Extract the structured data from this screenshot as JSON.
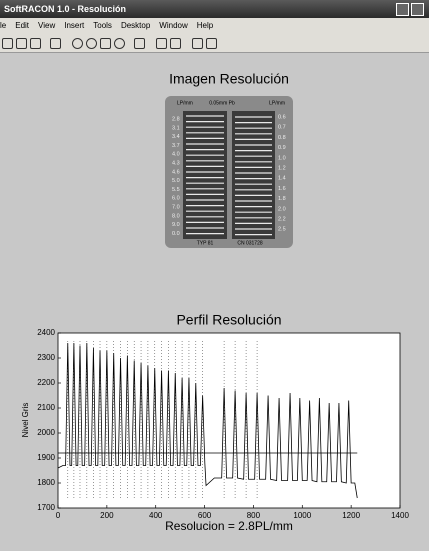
{
  "window": {
    "title": "SoftRACON 1.0 - Resolución",
    "menu": [
      "le",
      "Edit",
      "View",
      "Insert",
      "Tools",
      "Desktop",
      "Window",
      "Help"
    ]
  },
  "image_panel": {
    "title": "Imagen Resolución",
    "header": [
      "LP/mm",
      "0.05mm Pb",
      "LP/mm"
    ],
    "left_labels": [
      "2.8",
      "3.1",
      "3.4",
      "3.7",
      "4.0",
      "4.3",
      "4.6",
      "5.0",
      "5.5",
      "6.0",
      "7.0",
      "8.0",
      "9.0",
      "0.0"
    ],
    "right_labels": [
      "0.6",
      "0.7",
      "0.8",
      "0.9",
      "1.0",
      "1.2",
      "1.4",
      "1.6",
      "1.8",
      "2.0",
      "2.2",
      "2.5"
    ],
    "footer": [
      "TYP 81",
      "CN 031728"
    ]
  },
  "chart_data": {
    "type": "line",
    "title": "Perfil Resolución",
    "xlabel": "Resolucion = 2.8PL/mm",
    "ylabel": "Nivel Gris",
    "xlim": [
      0,
      1400
    ],
    "xticks": [
      0,
      200,
      400,
      600,
      800,
      1000,
      1200,
      1400
    ],
    "ylim": [
      1700,
      2400
    ],
    "yticks": [
      1700,
      1800,
      1900,
      2000,
      2100,
      2200,
      2300,
      2400
    ],
    "series": [
      {
        "color": "#000000",
        "x": [
          0,
          20,
          31,
          40,
          49,
          56,
          65,
          74,
          81,
          90,
          99,
          109,
          118,
          127,
          136,
          145,
          154,
          163,
          172,
          181,
          191,
          200,
          209,
          219,
          228,
          237,
          247,
          256,
          265,
          275,
          284,
          293,
          303,
          312,
          321,
          331,
          340,
          349,
          359,
          368,
          377,
          387,
          396,
          405,
          415,
          424,
          433,
          443,
          452,
          461,
          471,
          480,
          489,
          499,
          508,
          517,
          527,
          536,
          545,
          555,
          564,
          573,
          583,
          592,
          601,
          606,
          640,
          670,
          680,
          690,
          715,
          725,
          735,
          760,
          770,
          780,
          805,
          815,
          825,
          850,
          860,
          870,
          895,
          905,
          915,
          940,
          950,
          960,
          980,
          990,
          1000,
          1020,
          1030,
          1040,
          1060,
          1070,
          1080,
          1100,
          1110,
          1120,
          1140,
          1150,
          1160,
          1180,
          1190,
          1200,
          1215,
          1225
        ],
        "values": [
          1860,
          1870,
          1870,
          2360,
          1870,
          1870,
          2360,
          1870,
          1870,
          2350,
          1870,
          1870,
          2360,
          1870,
          1870,
          2340,
          1870,
          1870,
          2330,
          1870,
          1870,
          2330,
          1870,
          1870,
          2320,
          1870,
          1870,
          2300,
          1870,
          1870,
          2310,
          1870,
          1870,
          2290,
          1870,
          1870,
          2280,
          1870,
          1870,
          2270,
          1870,
          1870,
          2260,
          1870,
          1870,
          2250,
          1870,
          1870,
          2250,
          1870,
          1870,
          2240,
          1870,
          1870,
          2220,
          1870,
          1870,
          2220,
          1870,
          1870,
          2200,
          1870,
          1870,
          2150,
          1880,
          1790,
          1820,
          1820,
          2180,
          1820,
          1820,
          2170,
          1820,
          1815,
          2160,
          1815,
          1815,
          2160,
          1815,
          1815,
          2150,
          1815,
          1810,
          2140,
          1810,
          1810,
          2160,
          1810,
          1810,
          2140,
          1810,
          1810,
          2130,
          1810,
          1805,
          2140,
          1805,
          1805,
          2120,
          1805,
          1805,
          2120,
          1805,
          1800,
          2130,
          1800,
          1800,
          1740
        ]
      },
      {
        "color": "#000000",
        "x": [
          0,
          1225
        ],
        "values": [
          1920,
          1920
        ]
      }
    ],
    "vlines": [
      40,
      65,
      90,
      118,
      145,
      172,
      200,
      228,
      256,
      284,
      312,
      340,
      368,
      396,
      424,
      452,
      480,
      508,
      536,
      564,
      592,
      680,
      725,
      770,
      815
    ]
  }
}
